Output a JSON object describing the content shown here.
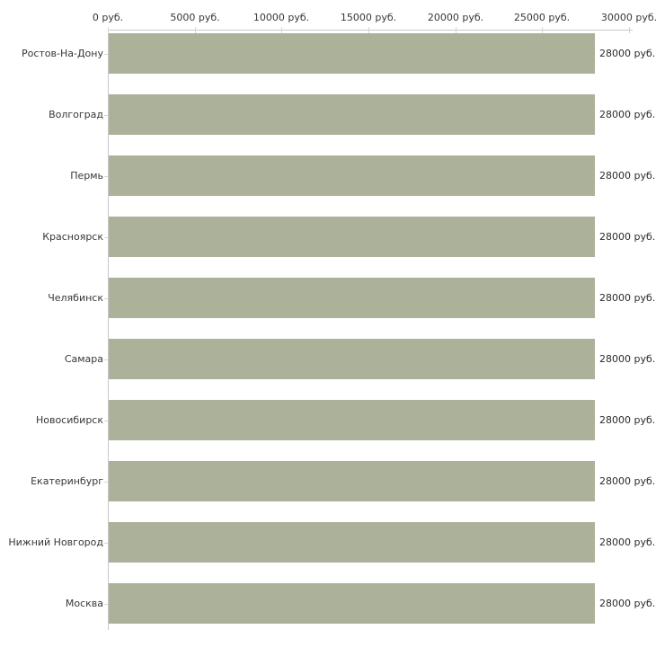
{
  "chart_data": {
    "type": "bar",
    "orientation": "horizontal",
    "title": "",
    "categories": [
      "Ростов-На-Дону",
      "Волгоград",
      "Пермь",
      "Красноярск",
      "Челябинск",
      "Самара",
      "Новосибирск",
      "Екатеринбург",
      "Нижний Новгород",
      "Москва"
    ],
    "values": [
      28000,
      28000,
      28000,
      28000,
      28000,
      28000,
      28000,
      28000,
      28000,
      28000
    ],
    "value_labels": [
      "28000 руб.",
      "28000 руб.",
      "28000 руб.",
      "28000 руб.",
      "28000 руб.",
      "28000 руб.",
      "28000 руб.",
      "28000 руб.",
      "28000 руб.",
      "28000 руб."
    ],
    "unit": "руб.",
    "x_axis": {
      "position": "top",
      "min": 0,
      "max": 30000,
      "ticks": [
        0,
        5000,
        10000,
        15000,
        20000,
        25000,
        30000
      ],
      "tick_labels": [
        "0 руб.",
        "5000 руб.",
        "10000 руб.",
        "15000 руб.",
        "20000 руб.",
        "25000 руб.",
        "30000 руб."
      ]
    },
    "grid": false,
    "legend": "none",
    "colors": {
      "bar": "#acb199",
      "axis_line": "#c9c9c9",
      "tick_mark": "#dbd7bd",
      "label_text": "#373737",
      "value_text": "#2b2b2b"
    }
  }
}
